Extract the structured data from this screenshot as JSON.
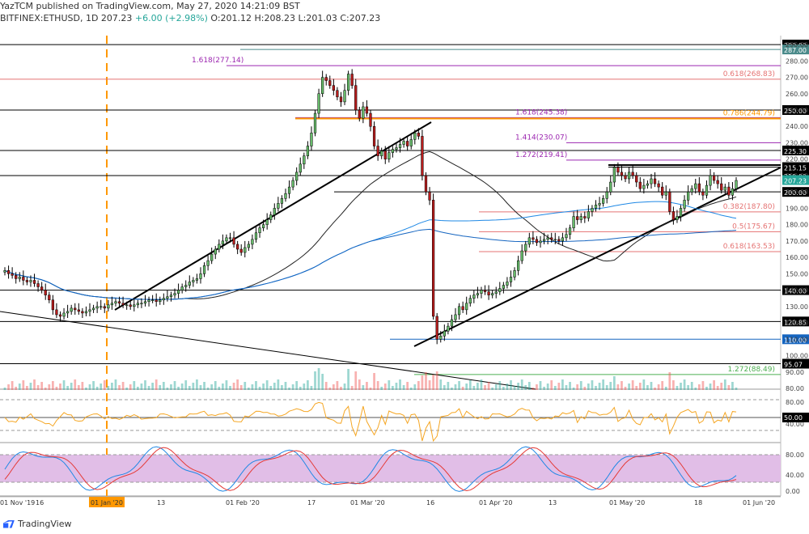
{
  "header": {
    "line1": "YazTCM published on TradingView.com, May 27, 2020 14:21:09 BST",
    "symbol": "BITFINEX:ETHUSD, 1D",
    "last": "207.23",
    "change": "+6.00 (+2.98%)",
    "ohlc": "O:201.12 H:208.23 L:201.03 C:207.23"
  },
  "footer": {
    "brand": "TradingView"
  },
  "colors": {
    "up": "#26a69a",
    "down": "#c62828",
    "fib_red": "#e57373",
    "fib_purple": "#9c27b0",
    "fib_orange": "#ff9800",
    "blue": "#1565c0",
    "green": "#4caf50",
    "stoch_fill": "#e1bee7"
  },
  "chart_data": {
    "type": "candlestick",
    "x_ticks": [
      "01 Nov '19",
      "16",
      "01 Jan '20",
      "13",
      "01 Feb '20",
      "17",
      "01 Mar '20",
      "16",
      "01 Apr '20",
      "13",
      "01 May '20",
      "18",
      "01 Jun '20"
    ],
    "y_ticks": [
      "290.00",
      "280.00",
      "270.00",
      "260.00",
      "250.00",
      "240.00",
      "230.00",
      "220.00",
      "210.00",
      "200.00",
      "190.00",
      "180.00",
      "170.00",
      "160.00",
      "150.00",
      "140.00",
      "130.00",
      "120.00",
      "110.00",
      "100.00",
      "90.00",
      "80.00"
    ],
    "price_range": [
      80,
      295
    ],
    "candles_close": [
      152,
      150,
      149,
      147,
      148,
      146,
      145,
      146,
      144,
      142,
      140,
      137,
      134,
      128,
      125,
      124,
      126,
      127,
      129,
      128,
      127,
      126,
      127,
      128,
      129,
      130,
      130,
      129,
      131,
      132,
      133,
      132,
      131,
      131,
      130,
      131,
      132,
      132,
      133,
      134,
      134,
      133,
      134,
      135,
      136,
      137,
      138,
      140,
      142,
      143,
      145,
      146,
      147,
      150,
      155,
      158,
      162,
      165,
      168,
      170,
      172,
      172,
      168,
      165,
      163,
      166,
      168,
      171,
      175,
      178,
      180,
      183,
      186,
      190,
      193,
      196,
      199,
      203,
      207,
      212,
      217,
      222,
      228,
      236,
      248,
      260,
      270,
      268,
      265,
      262,
      258,
      255,
      262,
      272,
      265,
      250,
      245,
      252,
      248,
      240,
      228,
      222,
      225,
      220,
      224,
      226,
      227,
      229,
      231,
      228,
      232,
      236,
      234,
      210,
      200,
      195,
      124,
      110,
      112,
      115,
      118,
      122,
      125,
      130,
      128,
      132,
      135,
      137,
      138,
      140,
      139,
      137,
      138,
      139,
      141,
      143,
      145,
      148,
      152,
      158,
      164,
      168,
      172,
      171,
      169,
      170,
      171,
      172,
      171,
      171,
      170,
      172,
      174,
      178,
      185,
      183,
      185,
      184,
      188,
      190,
      192,
      193,
      196,
      200,
      206,
      215,
      212,
      210,
      208,
      212,
      210,
      206,
      202,
      204,
      205,
      208,
      205,
      203,
      198,
      200,
      188,
      183,
      185,
      190,
      195,
      200,
      202,
      205,
      200,
      198,
      204,
      210,
      207,
      205,
      201,
      203,
      198,
      202,
      207
    ],
    "horizontal_levels": [
      {
        "value": 290.0,
        "label": "290.00",
        "color": "#000000"
      },
      {
        "value": 287.0,
        "label": "287.00",
        "color": "#4a8a8a"
      },
      {
        "value": 277.14,
        "label": "1.618(277.14)",
        "color": "#9c27b0"
      },
      {
        "value": 268.83,
        "label": "0.618(268.83)",
        "color": "#e57373"
      },
      {
        "value": 250.0,
        "label": "250.00",
        "color": "#000000"
      },
      {
        "value": 245.38,
        "label": "1.618(245.38)",
        "color": "#9c27b0"
      },
      {
        "value": 244.79,
        "label": "0.786(244.79)",
        "color": "#ff9800"
      },
      {
        "value": 230.07,
        "label": "1.414(230.07)",
        "color": "#9c27b0"
      },
      {
        "value": 225.3,
        "label": "225.30",
        "color": "#000000"
      },
      {
        "value": 219.41,
        "label": "1.272(219.41)",
        "color": "#9c27b0"
      },
      {
        "value": 215.15,
        "label": "215.15",
        "color": "#000000"
      },
      {
        "value": 210.0,
        "label": "210.00",
        "color": "#000000"
      },
      {
        "value": 200.0,
        "label": "200.00",
        "color": "#000000"
      },
      {
        "value": 187.8,
        "label": "0.382(187.80)",
        "color": "#e57373"
      },
      {
        "value": 175.67,
        "label": "0.5(175.67)",
        "color": "#e57373"
      },
      {
        "value": 163.53,
        "label": "0.618(163.53)",
        "color": "#e57373"
      },
      {
        "value": 140.0,
        "label": "140.00",
        "color": "#000000"
      },
      {
        "value": 120.85,
        "label": "120.85",
        "color": "#000000"
      },
      {
        "value": 110.0,
        "label": "110.00",
        "color": "#1565c0"
      },
      {
        "value": 95.07,
        "label": "95.07",
        "color": "#000000"
      },
      {
        "value": 88.49,
        "label": "1.272(88.49)",
        "color": "#4caf50"
      }
    ],
    "current_price_label": "207.23",
    "rsi": {
      "ticks": [
        "80.00",
        "50.00",
        "40.00"
      ],
      "value_label": "50.00"
    },
    "stoch": {
      "ticks": [
        "80.00",
        "40.00",
        "0.00"
      ]
    },
    "vertical_marker": "01 Jan '20"
  }
}
